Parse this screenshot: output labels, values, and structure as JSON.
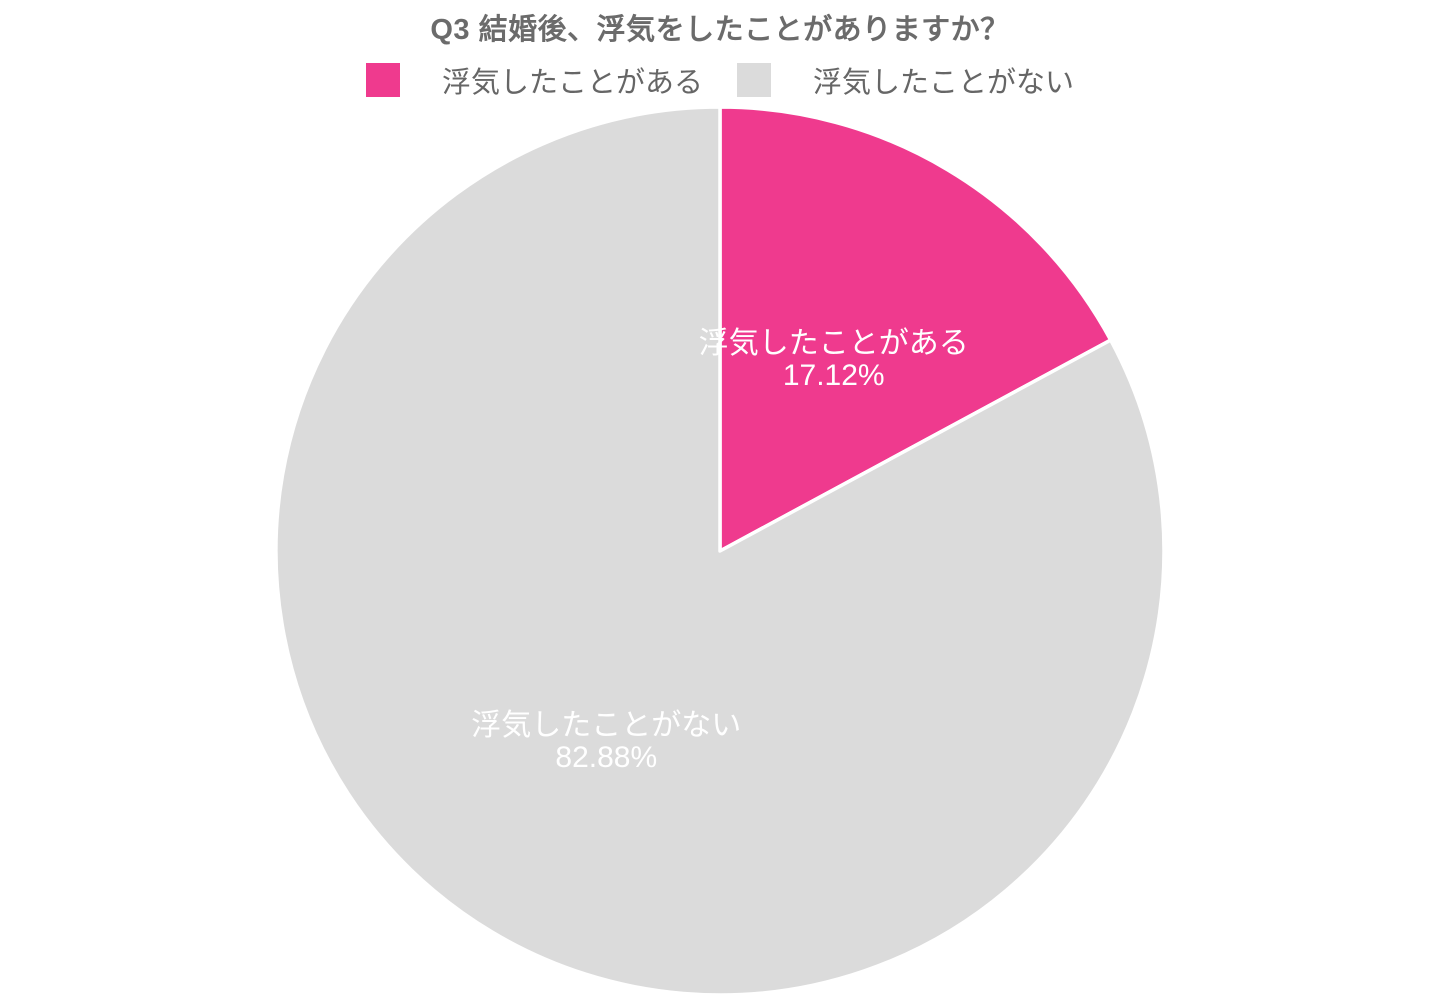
{
  "page": {
    "background": "#ffffff"
  },
  "header": {
    "title": "Q3 結婚後、浮気をしたことがありますか？"
  },
  "legend": {
    "items": [
      {
        "label": "浮気したことがある",
        "color": "#EF3A8E"
      },
      {
        "label": "浮気したことがない",
        "color": "#DBDBDB"
      }
    ]
  },
  "chart_data": {
    "type": "pie",
    "title": "Q3 結婚後、浮気をしたことがありますか？",
    "categories": [
      "浮気したことがある",
      "浮気したことがない"
    ],
    "values": [
      17.12,
      82.88
    ],
    "unit": "%",
    "colors": [
      "#EF3A8E",
      "#DBDBDB"
    ],
    "labels": [
      {
        "name": "浮気したことがある",
        "percent_text": "17.12%"
      },
      {
        "name": "浮気したことがない",
        "percent_text": "82.88%"
      }
    ],
    "start_angle_deg": 0,
    "direction": "clockwise",
    "legend_position": "top",
    "label_color": "#ffffff",
    "slice_border_color": "#ffffff"
  }
}
